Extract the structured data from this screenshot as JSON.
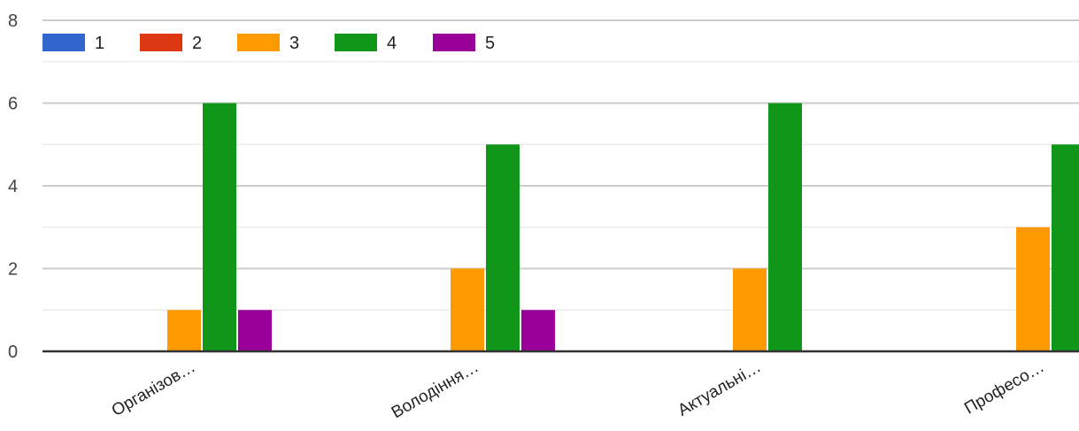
{
  "chart_data": {
    "type": "bar",
    "categories": [
      "Організов…",
      "Володіння…",
      "Актуальні…",
      "Професо…"
    ],
    "series": [
      {
        "name": "1",
        "color": "#3366cc",
        "values": [
          0,
          0,
          0,
          0
        ]
      },
      {
        "name": "2",
        "color": "#dc3912",
        "values": [
          0,
          0,
          0,
          0
        ]
      },
      {
        "name": "3",
        "color": "#ff9900",
        "values": [
          1,
          2,
          2,
          3
        ]
      },
      {
        "name": "4",
        "color": "#109618",
        "values": [
          6,
          5,
          6,
          5
        ]
      },
      {
        "name": "5",
        "color": "#990099",
        "values": [
          1,
          1,
          0,
          0
        ]
      }
    ],
    "ylim": [
      0,
      8
    ],
    "yticks": [
      "0",
      "2",
      "4",
      "6",
      "8"
    ],
    "grid": true,
    "legend_position": "top-left"
  }
}
